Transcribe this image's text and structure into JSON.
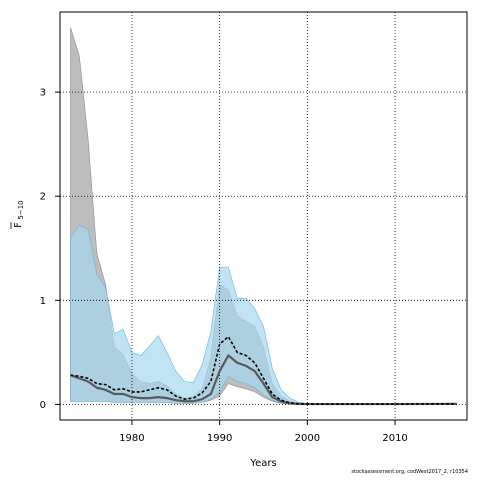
{
  "chart_data": {
    "type": "area",
    "xlabel": "Years",
    "ylabel": "F",
    "ylabel_subscript": "5−10",
    "xlim": [
      1971.8,
      2018.2
    ],
    "ylim": [
      -0.15,
      3.77
    ],
    "xticks": [
      1980,
      1990,
      2000,
      2010
    ],
    "xtick_labels": [
      "1980",
      "1990",
      "2000",
      "2010"
    ],
    "yticks": [
      0,
      1,
      2,
      3
    ],
    "ytick_labels": [
      "0",
      "1",
      "2",
      "3"
    ],
    "grid": true,
    "colors": {
      "gray_band": "#bdbdbd",
      "gray_band_edge": "#8c8c8c",
      "blue_band": "#a6d8f0",
      "blue_band_edge": "#6ab4d8",
      "gray_median": "#5a5a5a",
      "blue_median": "#000000"
    },
    "series": [
      {
        "x": [
          1973,
          1974,
          1975,
          1976,
          1977,
          1978,
          1979,
          1980,
          1981,
          1982,
          1983,
          1984,
          1985,
          1986,
          1987,
          1988,
          1989,
          1990,
          1991,
          1992,
          1993,
          1994,
          1995,
          1996,
          1997,
          1998,
          1999,
          2000,
          2005,
          2010,
          2017
        ],
        "median": [
          0.28,
          0.25,
          0.22,
          0.16,
          0.14,
          0.1,
          0.1,
          0.07,
          0.06,
          0.06,
          0.07,
          0.06,
          0.04,
          0.03,
          0.03,
          0.05,
          0.1,
          0.32,
          0.47,
          0.4,
          0.37,
          0.32,
          0.2,
          0.07,
          0.03,
          0.01,
          0.005,
          0.003,
          0.003,
          0.003,
          0.005
        ],
        "lower": [
          0.03,
          0.03,
          0.03,
          0.03,
          0.03,
          0.02,
          0.02,
          0.02,
          0.02,
          0.02,
          0.02,
          0.02,
          0.01,
          0.01,
          0.01,
          0.02,
          0.04,
          0.08,
          0.2,
          0.17,
          0.15,
          0.12,
          0.07,
          0.03,
          0.01,
          0.003,
          0.001,
          0.001,
          0.001,
          0.001,
          0.001
        ],
        "upper": [
          3.62,
          3.35,
          2.55,
          1.45,
          1.15,
          0.55,
          0.48,
          0.3,
          0.22,
          0.2,
          0.22,
          0.18,
          0.1,
          0.06,
          0.07,
          0.15,
          0.45,
          1.15,
          1.1,
          0.85,
          0.8,
          0.75,
          0.55,
          0.2,
          0.08,
          0.03,
          0.01,
          0.005,
          0.005,
          0.005,
          0.01
        ]
      },
      {
        "x": [
          1973,
          1974,
          1975,
          1976,
          1977,
          1978,
          1979,
          1980,
          1981,
          1982,
          1983,
          1984,
          1985,
          1986,
          1987,
          1988,
          1989,
          1990,
          1991,
          1992,
          1993,
          1994,
          1995,
          1996,
          1997,
          1998,
          1999,
          2000,
          2005,
          2010,
          2017
        ],
        "median": [
          0.28,
          0.27,
          0.25,
          0.2,
          0.19,
          0.14,
          0.15,
          0.12,
          0.12,
          0.14,
          0.16,
          0.14,
          0.08,
          0.05,
          0.06,
          0.11,
          0.22,
          0.58,
          0.65,
          0.5,
          0.47,
          0.4,
          0.25,
          0.1,
          0.04,
          0.015,
          0.005,
          0.003,
          0.003,
          0.003,
          0.005
        ],
        "lower": [
          0.03,
          0.03,
          0.03,
          0.03,
          0.03,
          0.02,
          0.02,
          0.02,
          0.02,
          0.02,
          0.02,
          0.02,
          0.01,
          0.01,
          0.01,
          0.02,
          0.05,
          0.12,
          0.27,
          0.22,
          0.2,
          0.16,
          0.09,
          0.04,
          0.015,
          0.005,
          0.002,
          0.001,
          0.001,
          0.001,
          0.001
        ],
        "upper": [
          1.6,
          1.72,
          1.68,
          1.25,
          1.12,
          0.68,
          0.72,
          0.5,
          0.47,
          0.56,
          0.66,
          0.5,
          0.32,
          0.22,
          0.21,
          0.38,
          0.7,
          1.32,
          1.32,
          1.02,
          1.02,
          0.92,
          0.75,
          0.35,
          0.14,
          0.06,
          0.02,
          0.008,
          0.005,
          0.005,
          0.012
        ]
      }
    ]
  },
  "footer_text": "stockassessment.org, codWest2017_2, r10354"
}
